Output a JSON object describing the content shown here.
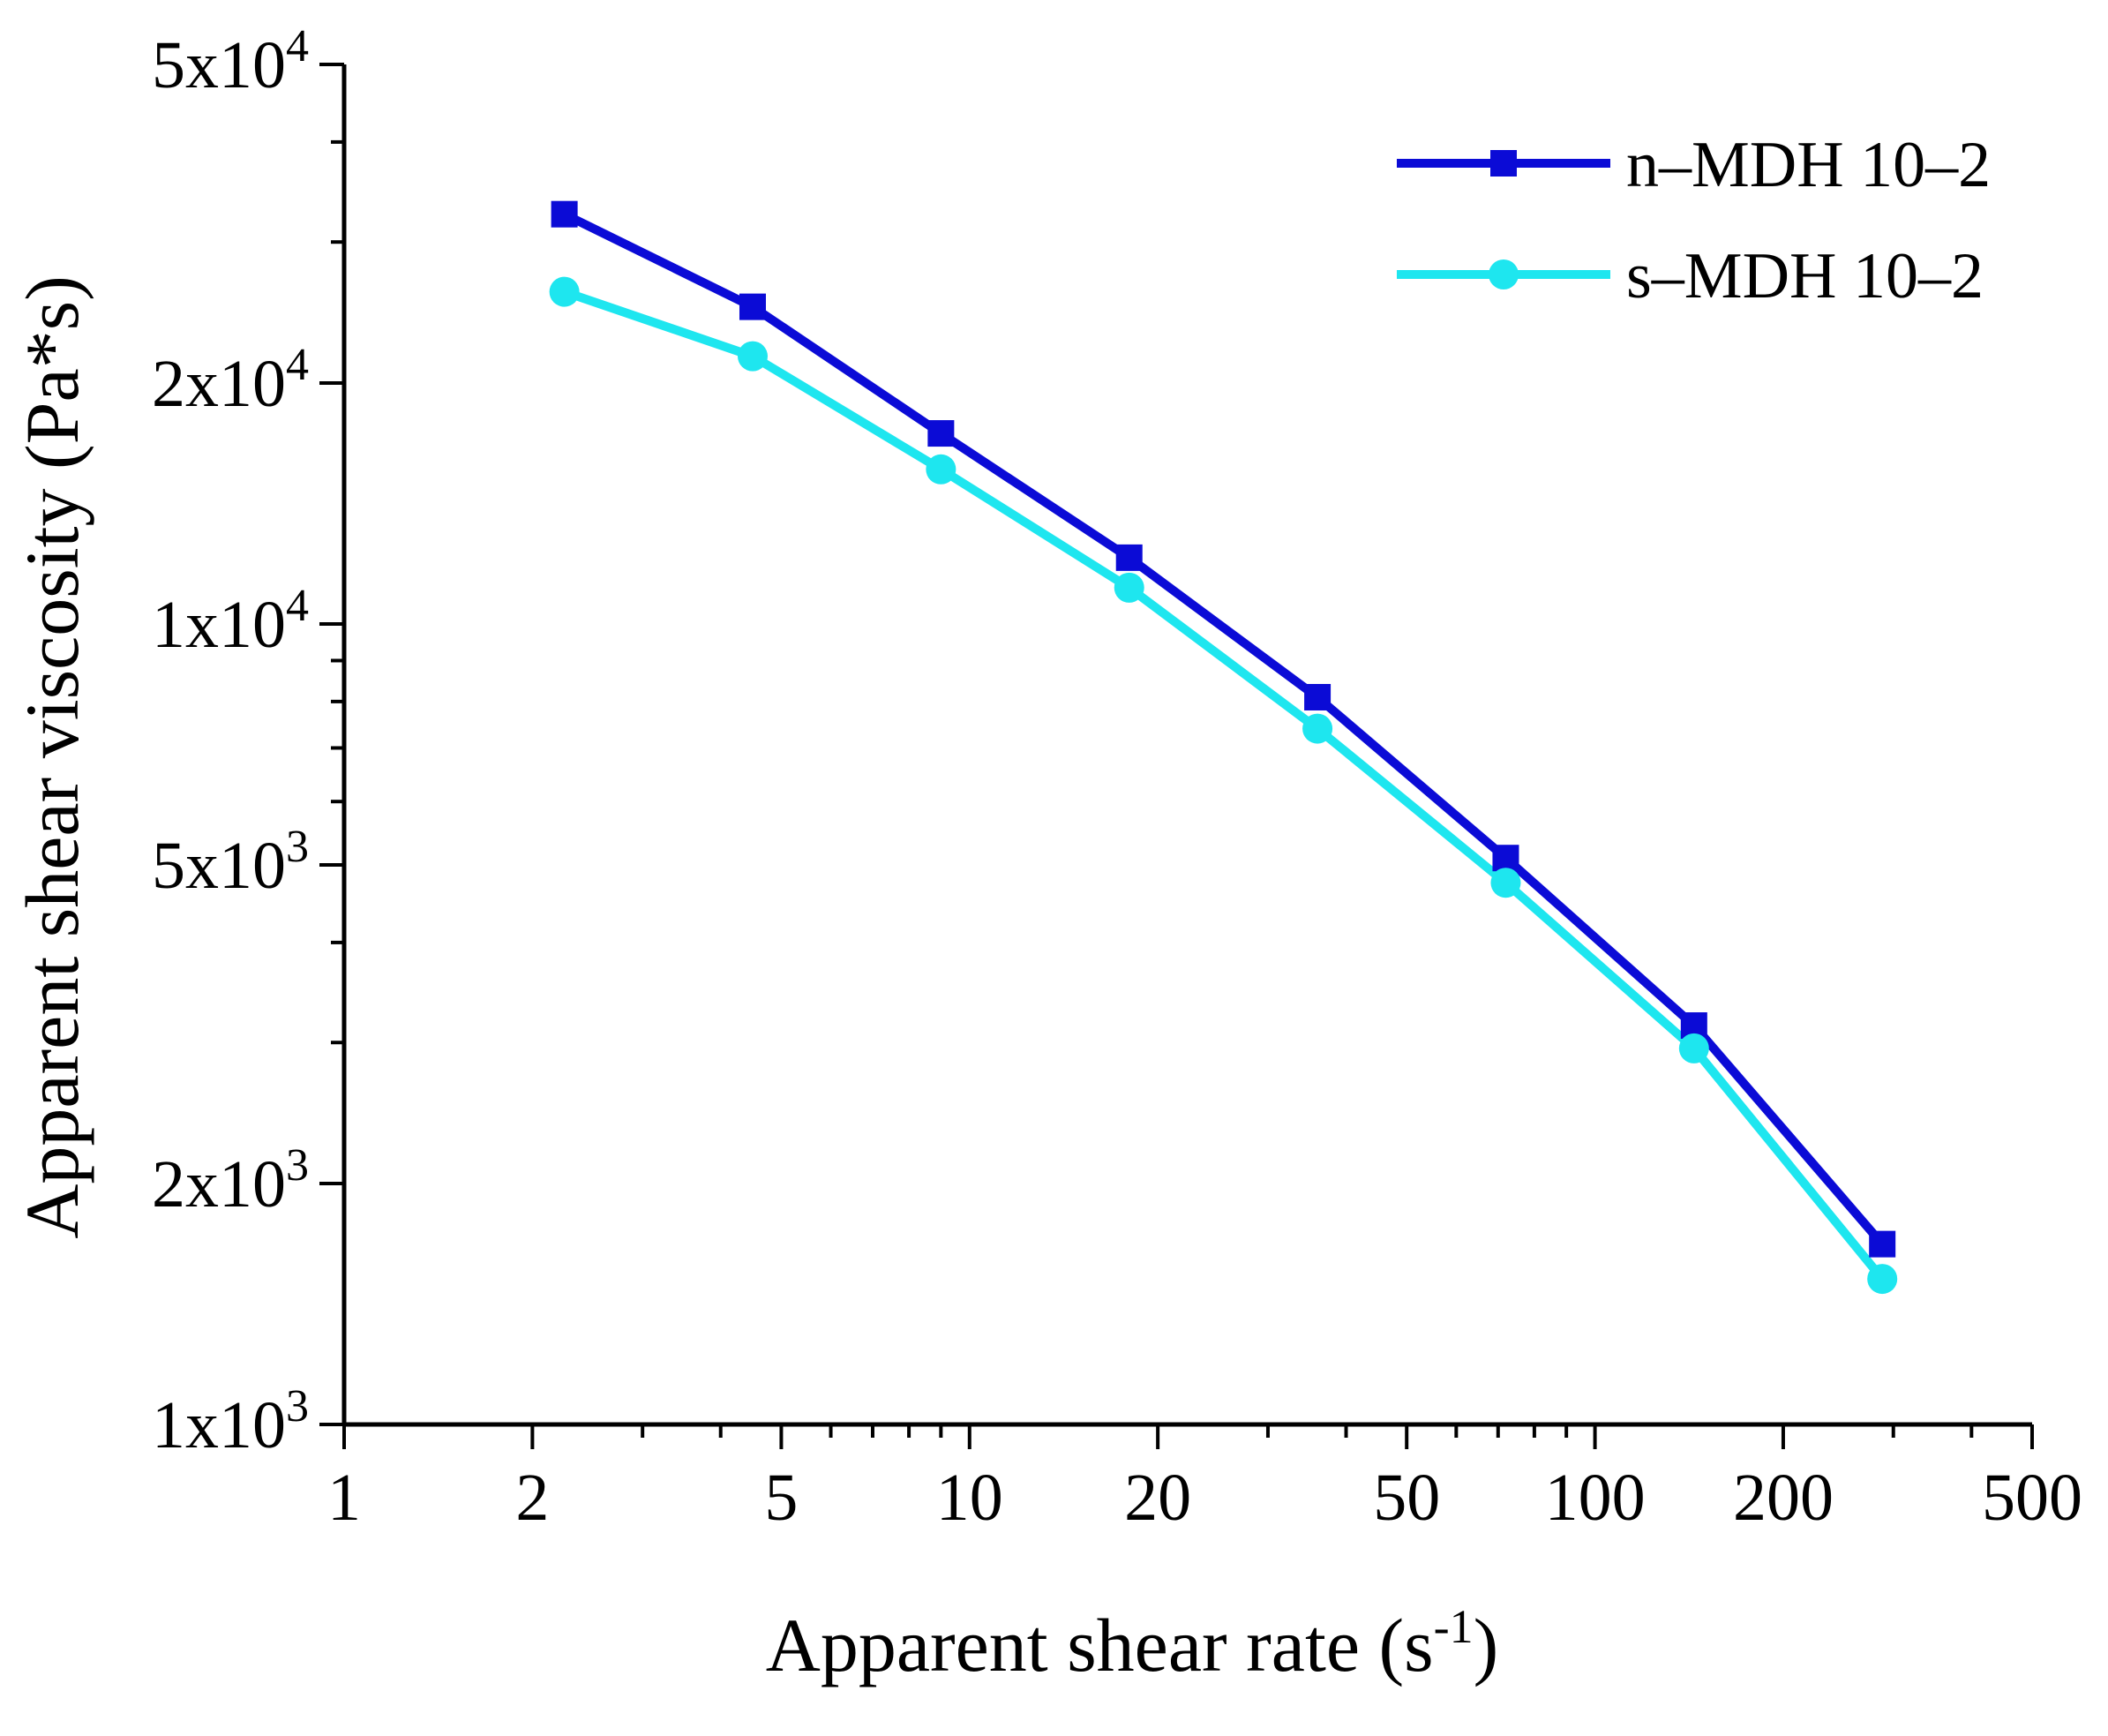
{
  "chart_data": {
    "type": "line",
    "scale": {
      "x": "log",
      "y": "log"
    },
    "xlabel": "Apparent shear rate (s",
    "xlabel_sup": "-1",
    "xlabel_suffix": ")",
    "ylabel": "Apparent shear viscosity (Pa*s)",
    "xlim": [
      1,
      500
    ],
    "ylim": [
      1000,
      50000
    ],
    "x_major_ticks": [
      1,
      2,
      5,
      10,
      20,
      50,
      100,
      200,
      500
    ],
    "x_tick_labels": [
      "1",
      "2",
      "5",
      "10",
      "20",
      "50",
      "100",
      "200",
      "500"
    ],
    "y_major_ticks": [
      1000,
      2000,
      5000,
      10000,
      20000,
      50000
    ],
    "y_tick_labels": [
      {
        "mant": "1x10",
        "exp": "3"
      },
      {
        "mant": "2x10",
        "exp": "3"
      },
      {
        "mant": "5x10",
        "exp": "3"
      },
      {
        "mant": "1x10",
        "exp": "4"
      },
      {
        "mant": "2x10",
        "exp": "4"
      },
      {
        "mant": "5x10",
        "exp": "4"
      }
    ],
    "legend_position": "top-right",
    "series": [
      {
        "name": "n–MDH 10–2",
        "color": "#0b0bd6",
        "marker": "square",
        "x": [
          2.25,
          4.5,
          9.0,
          18.0,
          36.0,
          72.0,
          144.0,
          288.0
        ],
        "values": [
          32500,
          24900,
          17300,
          12100,
          8100,
          5100,
          3150,
          1680
        ]
      },
      {
        "name": "s–MDH 10–2",
        "color": "#1ee6ef",
        "marker": "circle",
        "x": [
          2.25,
          4.5,
          9.0,
          18.0,
          36.0,
          72.0,
          144.0,
          288.0
        ],
        "values": [
          26000,
          21600,
          15600,
          11100,
          7400,
          4750,
          2950,
          1520
        ]
      }
    ]
  }
}
